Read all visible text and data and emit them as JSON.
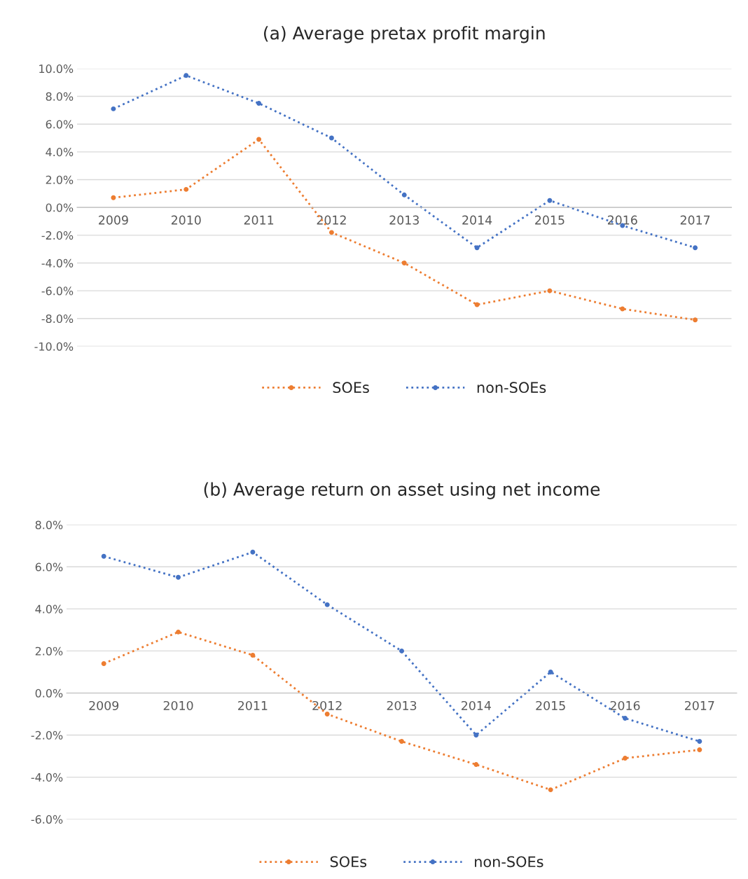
{
  "chart_data": [
    {
      "type": "line",
      "title": "(a) Average pretax profit margin",
      "categories": [
        "2009",
        "2010",
        "2011",
        "2012",
        "2013",
        "2014",
        "2015",
        "2016",
        "2017"
      ],
      "series": [
        {
          "name": "SOEs",
          "color": "#ed7d31",
          "values": [
            0.7,
            1.3,
            4.9,
            -1.8,
            -4.0,
            -7.0,
            -6.0,
            -7.3,
            -8.1
          ]
        },
        {
          "name": "non-SOEs",
          "color": "#4472c4",
          "values": [
            7.1,
            9.5,
            7.5,
            5.0,
            0.9,
            -2.9,
            0.5,
            -1.3,
            -2.9
          ]
        }
      ],
      "ylim": [
        -10,
        10
      ],
      "yticks": [
        {
          "value": -10,
          "label": "-10.0%"
        },
        {
          "value": -8,
          "label": "-8.0%"
        },
        {
          "value": -6,
          "label": "-6.0%"
        },
        {
          "value": -4,
          "label": "-4.0%"
        },
        {
          "value": -2,
          "label": "-2.0%"
        },
        {
          "value": 0,
          "label": "0.0%"
        },
        {
          "value": 2,
          "label": "2.0%"
        },
        {
          "value": 4,
          "label": "4.0%"
        },
        {
          "value": 6,
          "label": "6.0%"
        },
        {
          "value": 8,
          "label": "8.0%"
        },
        {
          "value": 10,
          "label": "10.0%"
        }
      ],
      "grid": "y",
      "legend": "bottom",
      "marker": "circle",
      "line_style": "dotted"
    },
    {
      "type": "line",
      "title": "(b) Average return on asset using net income",
      "categories": [
        "2009",
        "2010",
        "2011",
        "2012",
        "2013",
        "2014",
        "2015",
        "2016",
        "2017"
      ],
      "series": [
        {
          "name": "SOEs",
          "color": "#ed7d31",
          "values": [
            1.4,
            2.9,
            1.8,
            -1.0,
            -2.3,
            -3.4,
            -4.6,
            -3.1,
            -2.7
          ]
        },
        {
          "name": "non-SOEs",
          "color": "#4472c4",
          "values": [
            6.5,
            5.5,
            6.7,
            4.2,
            2.0,
            -2.0,
            1.0,
            -1.2,
            -2.3
          ]
        }
      ],
      "ylim": [
        -6,
        8
      ],
      "yticks": [
        {
          "value": -6,
          "label": "-6.0%"
        },
        {
          "value": -4,
          "label": "-4.0%"
        },
        {
          "value": -2,
          "label": "-2.0%"
        },
        {
          "value": 0,
          "label": "0.0%"
        },
        {
          "value": 2,
          "label": "2.0%"
        },
        {
          "value": 4,
          "label": "4.0%"
        },
        {
          "value": 6,
          "label": "6.0%"
        },
        {
          "value": 8,
          "label": "8.0%"
        }
      ],
      "grid": "y",
      "legend": "bottom",
      "marker": "circle",
      "line_style": "dotted"
    }
  ]
}
